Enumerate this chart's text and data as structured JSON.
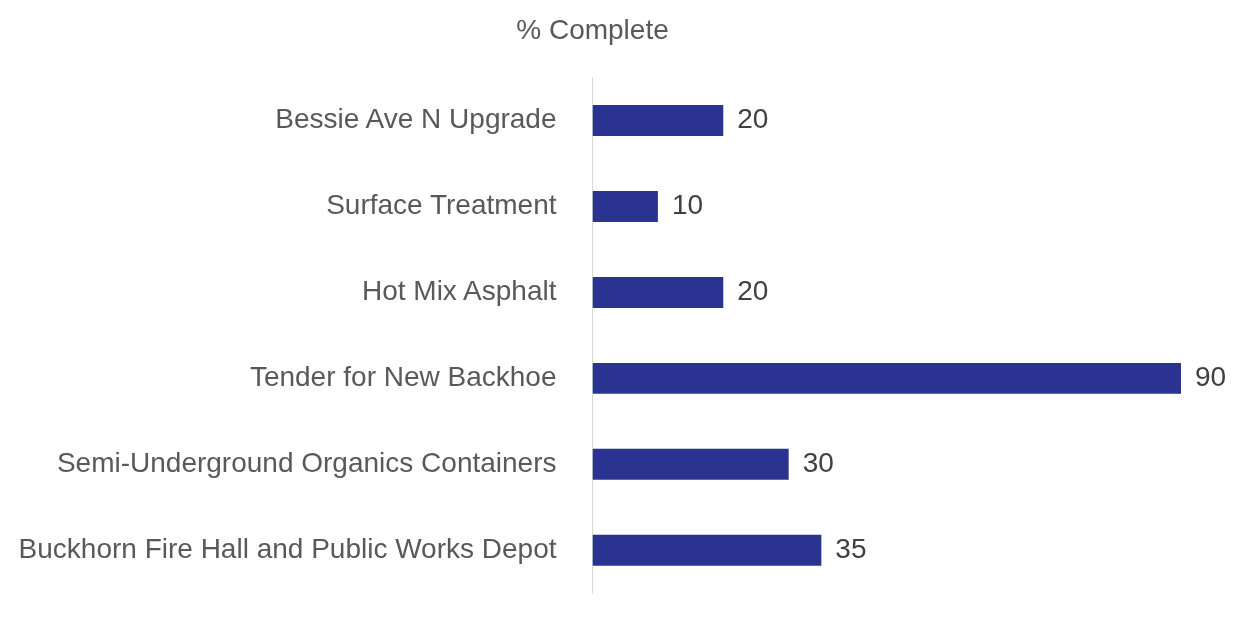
{
  "chart_data": {
    "type": "bar",
    "orientation": "horizontal",
    "title": "% Complete",
    "categories": [
      "Bessie Ave N Upgrade",
      "Surface Treatment",
      "Hot Mix Asphalt",
      "Tender for New Backhoe",
      "Semi-Underground Organics Containers",
      "Buckhorn Fire Hall and Public Works Depot"
    ],
    "values": [
      20,
      10,
      20,
      90,
      30,
      35
    ],
    "color": "#2b3390",
    "data_labels": true
  }
}
